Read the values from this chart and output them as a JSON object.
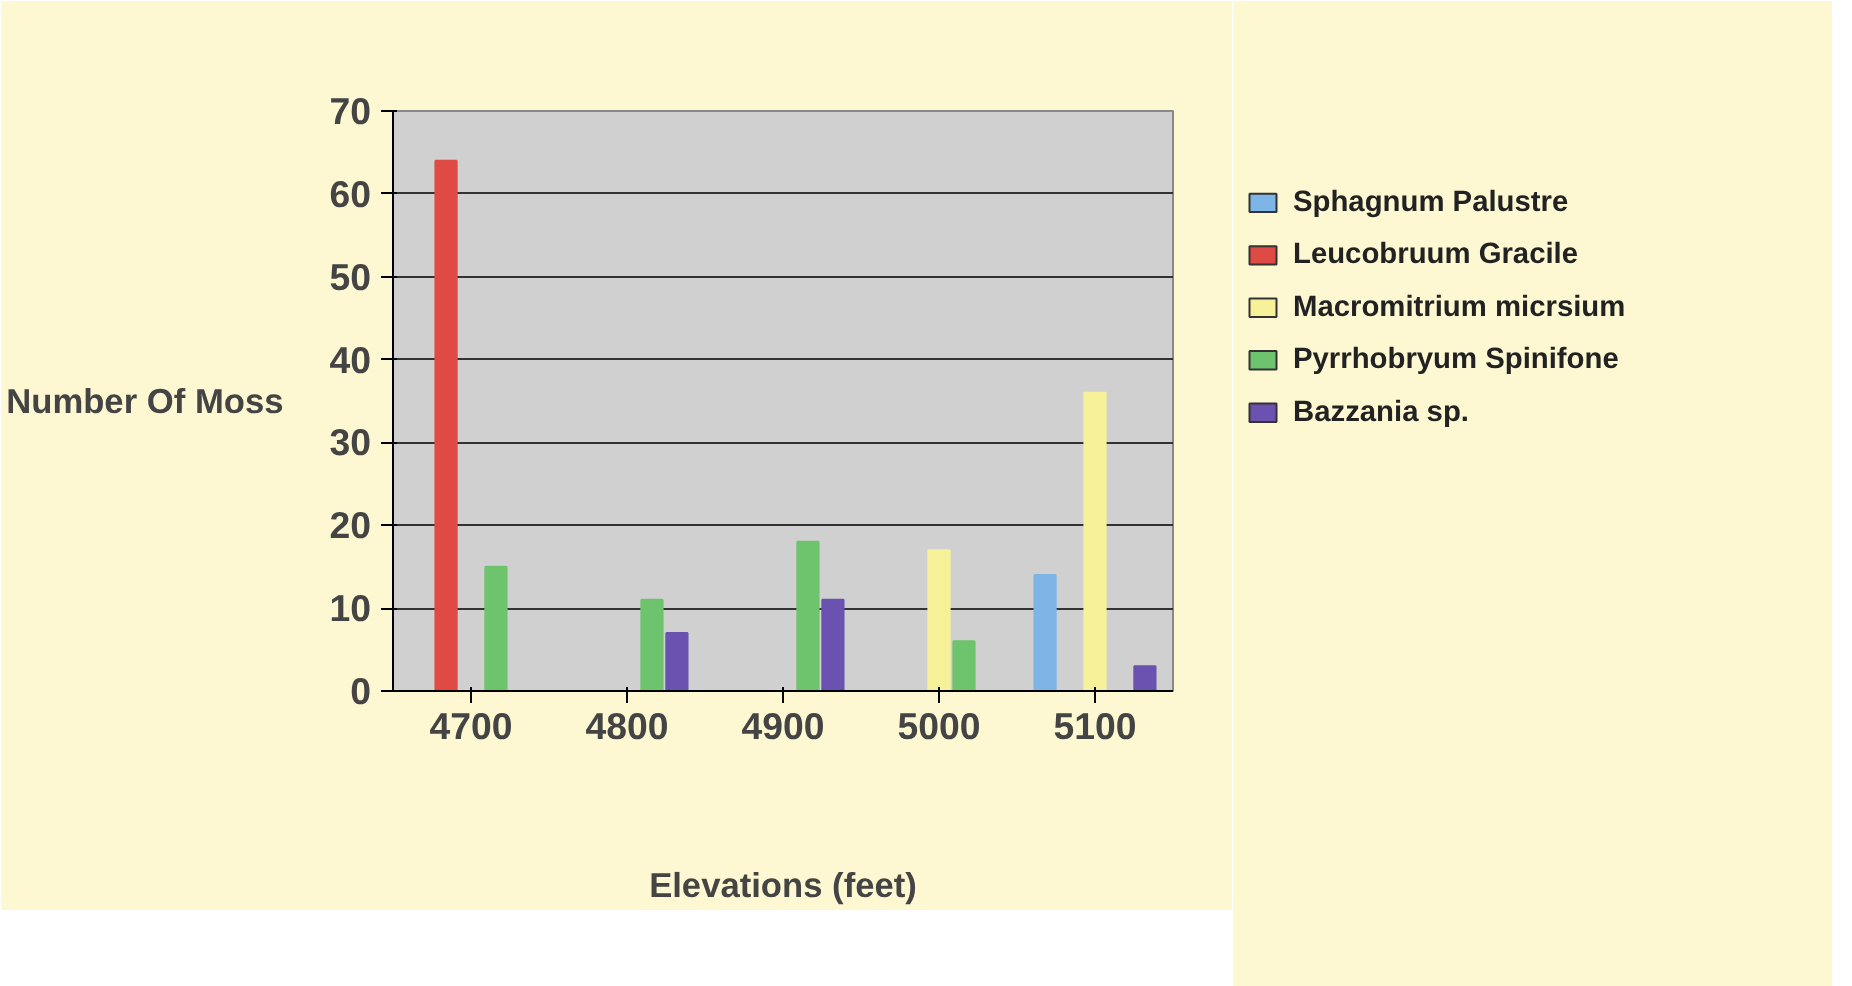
{
  "chart_data": {
    "type": "bar",
    "xlabel": "Elevations (feet)",
    "ylabel": "Number Of Moss",
    "categories": [
      "4700",
      "4800",
      "4900",
      "5000",
      "5100"
    ],
    "series": [
      {
        "name": "Sphagnum Palustre",
        "color": "#7cb5e6",
        "values": [
          0,
          0,
          0,
          0,
          14
        ]
      },
      {
        "name": "Leucobruum Gracile",
        "color": "#e04a45",
        "values": [
          64,
          0,
          0,
          0,
          0
        ]
      },
      {
        "name": "Macromitrium micrsium",
        "color": "#f7f29a",
        "values": [
          0,
          0,
          0,
          17,
          36
        ]
      },
      {
        "name": "Pyrrhobryum Spinifone",
        "color": "#6ec46c",
        "values": [
          15,
          11,
          18,
          6,
          0
        ]
      },
      {
        "name": "Bazzania sp.",
        "color": "#6b52b0",
        "values": [
          0,
          7,
          11,
          0,
          3
        ]
      }
    ],
    "ylim": [
      0,
      70
    ],
    "yticks": [
      0,
      10,
      20,
      30,
      40,
      50,
      60,
      70
    ],
    "grid": "y",
    "legend": "right"
  }
}
